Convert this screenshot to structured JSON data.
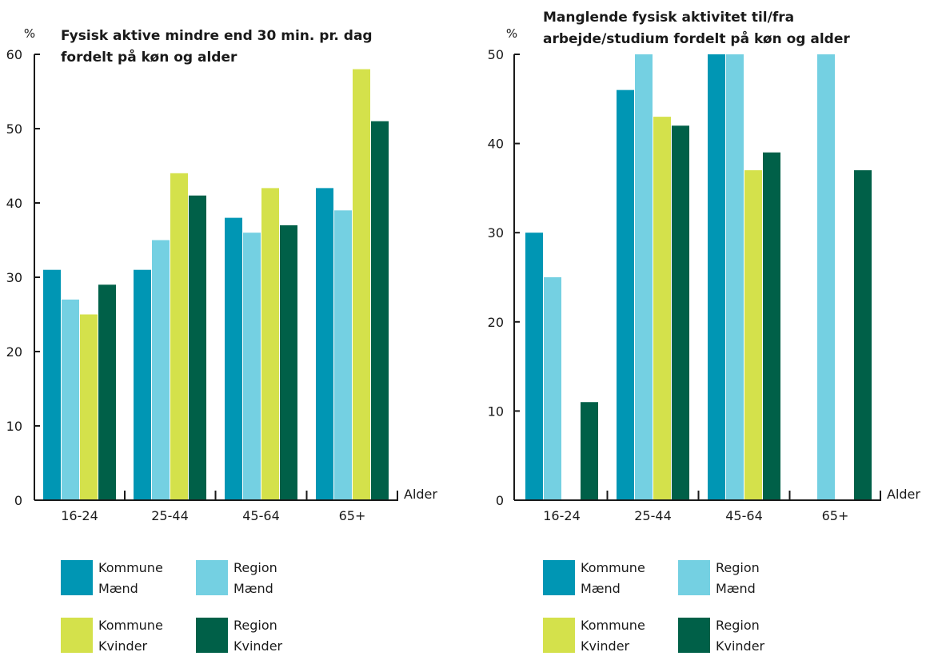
{
  "colors": {
    "kommune_maend": "#0096b4",
    "region_maend": "#74d0e2",
    "kommune_kvinder": "#d4e14b",
    "region_kvinder": "#006048"
  },
  "chart_data": [
    {
      "type": "bar",
      "title_lines": [
        "Fysisk aktive mindre end 30 min. pr. dag",
        "fordelt på køn og alder"
      ],
      "ylabel": "%",
      "xlabel": "Alder",
      "ylim": [
        0,
        60
      ],
      "yticks": [
        0,
        10,
        20,
        30,
        40,
        50,
        60
      ],
      "categories": [
        "16-24",
        "25-44",
        "45-64",
        "65+"
      ],
      "series": [
        {
          "name": "Kommune Mænd",
          "legend_lines": [
            "Kommune",
            "Mænd"
          ],
          "color_key": "kommune_maend",
          "values": [
            31,
            31,
            38,
            42
          ]
        },
        {
          "name": "Region Mænd",
          "legend_lines": [
            "Region",
            "Mænd"
          ],
          "color_key": "region_maend",
          "values": [
            27,
            35,
            36,
            39
          ]
        },
        {
          "name": "Kommune Kvinder",
          "legend_lines": [
            "Kommune",
            "Kvinder"
          ],
          "color_key": "kommune_kvinder",
          "values": [
            25,
            44,
            42,
            58
          ]
        },
        {
          "name": "Region Kvinder",
          "legend_lines": [
            "Region",
            "Kvinder"
          ],
          "color_key": "region_kvinder",
          "values": [
            29,
            41,
            37,
            51
          ]
        }
      ]
    },
    {
      "type": "bar",
      "title_lines": [
        "Manglende fysisk aktivitet til/fra",
        "arbejde/studium fordelt på køn og alder"
      ],
      "ylabel": "%",
      "xlabel": "Alder",
      "ylim": [
        0,
        50
      ],
      "yticks": [
        0,
        10,
        20,
        30,
        40,
        50
      ],
      "categories": [
        "16-24",
        "25-44",
        "45-64",
        "65+"
      ],
      "series": [
        {
          "name": "Kommune Mænd",
          "legend_lines": [
            "Kommune",
            "Mænd"
          ],
          "color_key": "kommune_maend",
          "values": [
            30,
            46,
            50,
            null
          ]
        },
        {
          "name": "Region Mænd",
          "legend_lines": [
            "Region",
            "Mænd"
          ],
          "color_key": "region_maend",
          "values": [
            25,
            50,
            50,
            50
          ]
        },
        {
          "name": "Kommune Kvinder",
          "legend_lines": [
            "Kommune",
            "Kvinder"
          ],
          "color_key": "kommune_kvinder",
          "values": [
            null,
            43,
            37,
            null
          ]
        },
        {
          "name": "Region Kvinder",
          "legend_lines": [
            "Region",
            "Kvinder"
          ],
          "color_key": "region_kvinder",
          "values": [
            11,
            42,
            39,
            37
          ]
        }
      ]
    }
  ]
}
